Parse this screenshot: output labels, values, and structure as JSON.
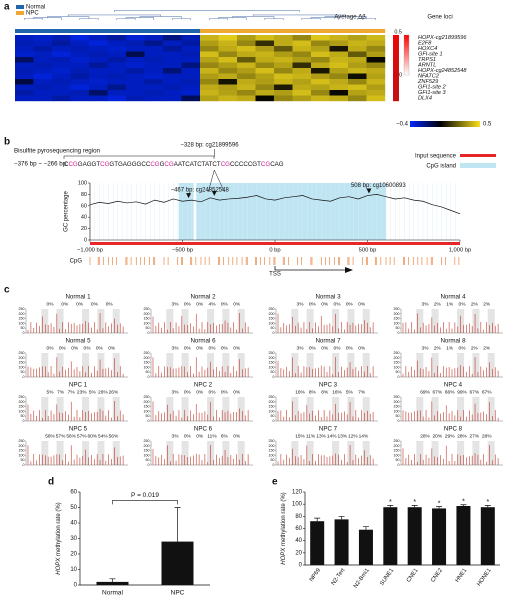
{
  "panels": {
    "a": "a",
    "b": "b",
    "c": "c",
    "d": "d",
    "e": "e"
  },
  "heatmap": {
    "legend": [
      "Normal",
      "NPC"
    ],
    "legend_colors": [
      "#2166ac",
      "#f0a830"
    ],
    "delta_title": "Average Δβ",
    "loci_title": "Gene loci",
    "genes": [
      "HOPX-cg21899596",
      "E2F8",
      "HOXC4",
      "GFI-site 1",
      "TRPS1",
      "ARNTL",
      "HOPX-cg24852548",
      "NFATC2",
      "ZNF529",
      "GFI1-site 2",
      "GFI1-site 3",
      "DLX4"
    ],
    "delta": [
      0.45,
      0.4,
      0.38,
      0.36,
      0.35,
      0.34,
      0.33,
      0.32,
      0.31,
      0.3,
      0.29,
      0.28
    ],
    "delta_scale": [
      "0.5",
      "0"
    ],
    "scale": [
      "−0.4",
      "0.5"
    ],
    "col_groups": [
      0,
      0,
      0,
      0,
      0,
      0,
      0,
      0,
      0,
      0,
      1,
      1,
      1,
      1,
      1,
      1,
      1,
      1,
      1,
      1
    ],
    "matrix": [
      [
        -0.3,
        -0.32,
        -0.28,
        -0.35,
        -0.3,
        -0.25,
        -0.33,
        -0.3,
        -0.2,
        -0.28,
        0.4,
        0.45,
        0.35,
        0.42,
        0.38,
        0.3,
        0.44,
        0.4,
        0.36,
        0.41
      ],
      [
        -0.28,
        -0.3,
        -0.25,
        -0.3,
        -0.34,
        -0.3,
        -0.28,
        -0.22,
        -0.3,
        -0.26,
        0.35,
        0.4,
        0.3,
        0.1,
        0.38,
        0.42,
        0.3,
        0.35,
        0.4,
        0.38
      ],
      [
        -0.3,
        -0.26,
        -0.3,
        -0.28,
        -0.3,
        -0.32,
        -0.3,
        -0.3,
        -0.24,
        -0.3,
        0.3,
        0.38,
        0.42,
        0.35,
        0.2,
        0.4,
        0.36,
        0.05,
        0.38,
        0.3
      ],
      [
        -0.32,
        -0.3,
        -0.34,
        -0.3,
        -0.28,
        -0.3,
        -0.12,
        -0.3,
        -0.3,
        -0.28,
        0.42,
        0.3,
        0.38,
        0.4,
        0.35,
        0.3,
        0.42,
        0.38,
        0.2,
        0.35
      ],
      [
        -0.15,
        -0.3,
        -0.28,
        -0.32,
        -0.3,
        -0.26,
        -0.3,
        -0.28,
        -0.3,
        -0.3,
        0.36,
        0.42,
        0.2,
        0.38,
        0.4,
        0.35,
        0.3,
        0.4,
        0.38,
        0.02
      ],
      [
        -0.3,
        -0.28,
        -0.3,
        -0.3,
        -0.24,
        -0.3,
        -0.32,
        -0.3,
        -0.3,
        -0.2,
        0.3,
        0.35,
        0.4,
        0.3,
        0.36,
        0.1,
        0.38,
        0.42,
        0.35,
        0.3
      ],
      [
        -0.28,
        -0.3,
        -0.32,
        -0.28,
        -0.3,
        -0.3,
        -0.26,
        -0.3,
        -0.18,
        -0.3,
        0.4,
        0.3,
        0.35,
        0.42,
        0.3,
        0.38,
        0.05,
        0.36,
        0.4,
        0.38
      ],
      [
        -0.3,
        -0.34,
        -0.3,
        -0.26,
        -0.3,
        -0.28,
        -0.3,
        -0.32,
        -0.3,
        -0.3,
        0.35,
        0.38,
        0.3,
        0.36,
        0.42,
        0.4,
        0.35,
        0.3,
        0.03,
        0.36
      ],
      [
        -0.1,
        -0.3,
        -0.28,
        -0.3,
        -0.32,
        -0.3,
        -0.3,
        -0.26,
        -0.3,
        -0.28,
        0.3,
        0.04,
        0.38,
        0.35,
        0.4,
        0.36,
        0.42,
        0.38,
        0.3,
        0.4
      ],
      [
        -0.3,
        -0.28,
        -0.3,
        -0.34,
        -0.3,
        -0.22,
        -0.3,
        -0.3,
        -0.28,
        -0.3,
        0.38,
        0.35,
        0.4,
        0.3,
        0.06,
        0.38,
        0.36,
        0.4,
        0.42,
        0.35
      ],
      [
        -0.26,
        -0.3,
        -0.3,
        -0.28,
        -0.16,
        -0.3,
        -0.3,
        -0.28,
        -0.3,
        -0.32,
        0.4,
        0.36,
        0.3,
        0.38,
        0.35,
        0.42,
        0.3,
        0.02,
        0.36,
        0.38
      ],
      [
        -0.3,
        -0.3,
        -0.26,
        -0.3,
        -0.3,
        -0.34,
        -0.28,
        -0.3,
        -0.3,
        -0.14,
        0.36,
        0.4,
        0.38,
        0.02,
        0.3,
        0.35,
        0.4,
        0.38,
        0.3,
        0.42
      ]
    ]
  },
  "gc": {
    "bisulfite": "Bisulfite pyrosequencing region",
    "range": "−376 bp ~ −266 bp:",
    "sequence": [
      "C",
      "CG",
      "GAGGT",
      "CG",
      "GTGAGGGCC",
      "CG",
      "G",
      "CG",
      "AATCATCTATCT",
      "CG",
      "CCCCCGT",
      "CG",
      "CAG"
    ],
    "seq_cpg": [
      0,
      1,
      0,
      1,
      0,
      1,
      0,
      1,
      0,
      1,
      0,
      1,
      0
    ],
    "site_labels": [
      {
        "label": "−328 bp: cg21899596",
        "x": -328
      },
      {
        "label": "−467 bp: cg24852548",
        "x": -467
      },
      {
        "label": "508 bp: cg10600893",
        "x": 508
      }
    ],
    "legend": [
      "Input sequence",
      "CpG island"
    ],
    "ylabel": "GC percentage",
    "yticks": [
      0,
      20,
      40,
      60,
      80,
      100
    ],
    "ylim": [
      0,
      100
    ],
    "xlim": [
      -1000,
      1000
    ],
    "xticks": [
      {
        "value": -1000,
        "label": "−1,000 bp"
      },
      {
        "value": -500,
        "label": "−500 bp"
      },
      {
        "value": 0,
        "label": "0 bp"
      },
      {
        "value": 500,
        "label": "500 bp"
      },
      {
        "value": 1000,
        "label": "1,000 bp"
      }
    ],
    "x": [
      -1000,
      -950,
      -900,
      -850,
      -800,
      -750,
      -700,
      -650,
      -600,
      -550,
      -500,
      -450,
      -400,
      -350,
      -300,
      -250,
      -200,
      -150,
      -100,
      -50,
      0,
      50,
      100,
      150,
      200,
      250,
      300,
      350,
      400,
      450,
      500,
      550,
      600,
      650,
      700,
      750,
      800,
      850,
      900,
      950,
      1000
    ],
    "values": [
      62,
      66,
      64,
      68,
      65,
      67,
      63,
      70,
      66,
      72,
      68,
      70,
      67,
      74,
      70,
      72,
      73,
      75,
      78,
      72,
      70,
      74,
      76,
      78,
      72,
      70,
      68,
      74,
      76,
      72,
      78,
      80,
      76,
      72,
      74,
      70,
      68,
      62,
      58,
      52,
      46
    ],
    "islands": [
      [
        -520,
        -440
      ],
      [
        -425,
        600
      ]
    ],
    "cpg_label": "CpG",
    "tss": "TSS"
  },
  "pyro": {
    "yticks": [
      0,
      50,
      100,
      150,
      200,
      250
    ],
    "samples": [
      {
        "name": "Normal 1",
        "pct": [
          "0%",
          "0%",
          "0%",
          "0%",
          "0%"
        ],
        "hl": 2
      },
      {
        "name": "Normal 2",
        "pct": [
          "3%",
          "0%",
          "0%",
          "4%",
          "0%",
          "0%"
        ],
        "hl": 3
      },
      {
        "name": "Normal 3",
        "pct": [
          "3%",
          "0%",
          "0%",
          "0%",
          "0%",
          "0%"
        ],
        "hl": 3
      },
      {
        "name": "Normal 4",
        "pct": [
          "3%",
          "2%",
          "1%",
          "0%",
          "2%",
          "2%"
        ],
        "hl": 3
      },
      {
        "name": "Normal 5",
        "pct": [
          "0%",
          "0%",
          "0%",
          "0%",
          "0%",
          "0%"
        ],
        "hl": 3
      },
      {
        "name": "Normal 6",
        "pct": [
          "3%",
          "0%",
          "0%",
          "0%",
          "0%",
          "0%"
        ],
        "hl": 3
      },
      {
        "name": "Normal 7",
        "pct": [
          "3%",
          "0%",
          "0%",
          "0%",
          "0%",
          "0%"
        ],
        "hl": 3
      },
      {
        "name": "Normal 8",
        "pct": [
          "3%",
          "2%",
          "1%",
          "0%",
          "2%",
          "2%"
        ],
        "hl": 3
      },
      {
        "name": "NPC 1",
        "pct": [
          "5%",
          "7%",
          "7%",
          "23%",
          "5%",
          "26%",
          "26%"
        ],
        "hl": 3
      },
      {
        "name": "NPC 2",
        "pct": [
          "3%",
          "0%",
          "0%",
          "0%",
          "0%",
          "0%"
        ],
        "hl": 3
      },
      {
        "name": "NPC 3",
        "pct": [
          "16%",
          "8%",
          "8%",
          "16%",
          "5%",
          "7%"
        ],
        "hl": 3
      },
      {
        "name": "NPC 4",
        "pct": [
          "69%",
          "67%",
          "66%",
          "99%",
          "67%",
          "67%"
        ],
        "hl": 3
      },
      {
        "name": "NPC 5",
        "pct": [
          "56%",
          "57%",
          "56%",
          "57%",
          "60%",
          "54%",
          "56%"
        ],
        "hl": 3
      },
      {
        "name": "NPC 6",
        "pct": [
          "3%",
          "0%",
          "0%",
          "11%",
          "6%",
          "0%"
        ],
        "hl": 3
      },
      {
        "name": "NPC 7",
        "pct": [
          "15%",
          "11%",
          "13%",
          "14%",
          "13%",
          "12%",
          "14%"
        ],
        "hl": 3
      },
      {
        "name": "NPC 8",
        "pct": [
          "28%",
          "20%",
          "29%",
          "28%",
          "27%",
          "28%"
        ],
        "hl": 3
      }
    ]
  },
  "chart_data": [
    {
      "type": "bar",
      "ylabel_gene": "HOPX",
      "ylabel_rest": " methylation rate (%)",
      "annotation": "P = 0.019",
      "categories": [
        "Normal",
        "NPC"
      ],
      "values": [
        2,
        28
      ],
      "errors": [
        2,
        22
      ],
      "color": "#111111",
      "ylim": [
        0,
        60
      ],
      "yticks": [
        0,
        10,
        20,
        30,
        40,
        50,
        60
      ]
    },
    {
      "type": "bar",
      "ylabel_gene": "HOPX",
      "ylabel_rest": " methylation rate (%)",
      "sig_label": "*",
      "categories": [
        "NP69",
        "N2-Tert",
        "N2-Bmi1",
        "SUNE1",
        "CNE1",
        "CNE2",
        "HNE1",
        "HONE1"
      ],
      "values": [
        72,
        75,
        58,
        95,
        95,
        93,
        97,
        95
      ],
      "errors": [
        5,
        5,
        5,
        3,
        3,
        3,
        2,
        3
      ],
      "sig": [
        0,
        0,
        0,
        1,
        1,
        1,
        1,
        1
      ],
      "color": "#111111",
      "ylim": [
        0,
        120
      ],
      "yticks": [
        0,
        20,
        40,
        60,
        80,
        100,
        120
      ]
    }
  ]
}
